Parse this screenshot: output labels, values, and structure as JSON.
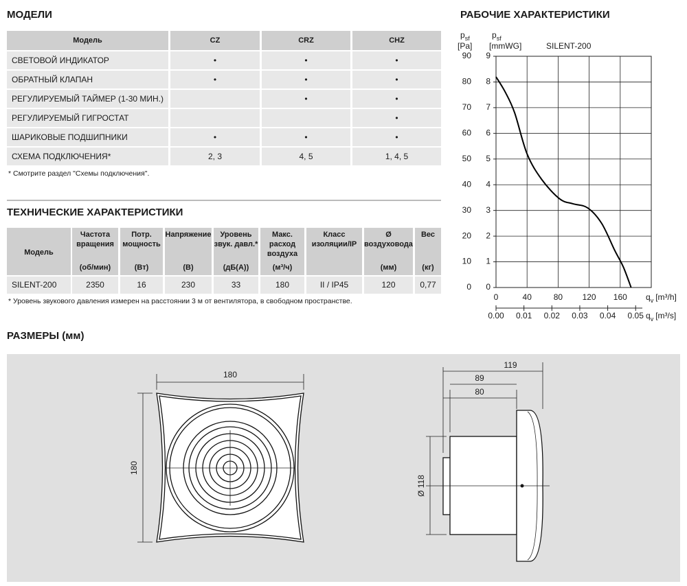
{
  "models": {
    "title": "МОДЕЛИ",
    "header": [
      "Модель",
      "CZ",
      "CRZ",
      "CHZ"
    ],
    "rows": [
      [
        "СВЕТОВОЙ ИНДИКАТОР",
        "•",
        "•",
        "•"
      ],
      [
        "ОБРАТНЫЙ КЛАПАН",
        "•",
        "•",
        "•"
      ],
      [
        "РЕГУЛИРУЕМЫЙ ТАЙМЕР (1-30 МИН.)",
        null,
        "•",
        "•"
      ],
      [
        "РЕГУЛИРУЕМЫЙ ГИГРОСТАТ",
        null,
        null,
        "•"
      ],
      [
        "ШАРИКОВЫЕ ПОДШИПНИКИ",
        "•",
        "•",
        "•"
      ],
      [
        "СХЕМА ПОДКЛЮЧЕНИЯ*",
        "2, 3",
        "4, 5",
        "1, 4, 5"
      ]
    ],
    "footnote": "* Смотрите раздел \"Схемы подключения\"."
  },
  "tech": {
    "title": "ТЕХНИЧЕСКИЕ ХАРАКТЕРИСТИКИ",
    "header": [
      {
        "label": [
          "Модель"
        ]
      },
      {
        "label": [
          "Частота",
          "вращения"
        ],
        "unit": "(об/мин)"
      },
      {
        "label": [
          "Потр.",
          "мощность"
        ],
        "unit": "(Вт)"
      },
      {
        "label": [
          "Напряжение"
        ],
        "unit": "(В)"
      },
      {
        "label": [
          "Уровень",
          "звук. давл.*"
        ],
        "unit": "(дБ(А))"
      },
      {
        "label": [
          "Макс.",
          "расход",
          "воздуха"
        ],
        "unit": "(м³/ч)"
      },
      {
        "label": [
          "Класс",
          "изоляции/IP"
        ]
      },
      {
        "label": [
          "Ø",
          "воздуховода"
        ],
        "unit": "(мм)"
      },
      {
        "label": [
          "Вес"
        ],
        "unit": "(кг)"
      }
    ],
    "rows": [
      [
        "SILENT-200",
        "2350",
        "16",
        "230",
        "33",
        "180",
        "II / IP45",
        "120",
        "0,77"
      ]
    ],
    "footnote": "* Уровень звукового давления измерен на расстоянии 3 м от вентилятора, в свободном пространстве."
  },
  "performance_chart": {
    "type": "line",
    "title": "РАБОЧИЕ ХАРАКТЕРИСТИКИ",
    "series_name": "SILENT-200",
    "color": "#000000",
    "ylabel": {
      "symbol": "p",
      "sub": "sf",
      "unit": "[Pa]"
    },
    "y2label": {
      "symbol": "p",
      "sub": "sf",
      "unit": "[mmWG]"
    },
    "xlabel": {
      "symbol": "q",
      "sub": "v",
      "unit": "[m³/h]"
    },
    "x2label": {
      "symbol": "q",
      "sub": "v",
      "unit": "[m³/s]"
    },
    "x": [
      0,
      12,
      24,
      40,
      59,
      82,
      99,
      118,
      136,
      153,
      164,
      174
    ],
    "values": [
      82,
      76,
      68,
      52,
      42,
      34.5,
      32.6,
      31,
      25,
      14.4,
      8,
      0
    ],
    "xlim": [
      0,
      200
    ],
    "xticks": [
      0,
      40,
      80,
      120,
      160
    ],
    "x2lim": [
      0,
      0.0556
    ],
    "x2ticks": [
      {
        "value": 0,
        "label": "0.00"
      },
      {
        "value": 0.01,
        "label": "0.01"
      },
      {
        "value": 0.02,
        "label": "0.02"
      },
      {
        "value": 0.03,
        "label": "0.03"
      },
      {
        "value": 0.04,
        "label": "0.04"
      },
      {
        "value": 0.05,
        "label": "0.05"
      }
    ],
    "ylim": [
      0,
      90
    ],
    "yticks": [
      0,
      10,
      20,
      30,
      40,
      50,
      60,
      70,
      80,
      90
    ],
    "y2lim": [
      0,
      9
    ],
    "y2ticks": [
      0,
      1,
      2,
      3,
      4,
      5,
      6,
      7,
      8,
      9
    ],
    "grid": true
  },
  "dimensions": {
    "title": "РАЗМЕРЫ (мм)",
    "front_width": "180",
    "front_height": "180",
    "side_total": "119",
    "side_body": "89",
    "side_depth": "80",
    "diameter": "Ø 118"
  }
}
